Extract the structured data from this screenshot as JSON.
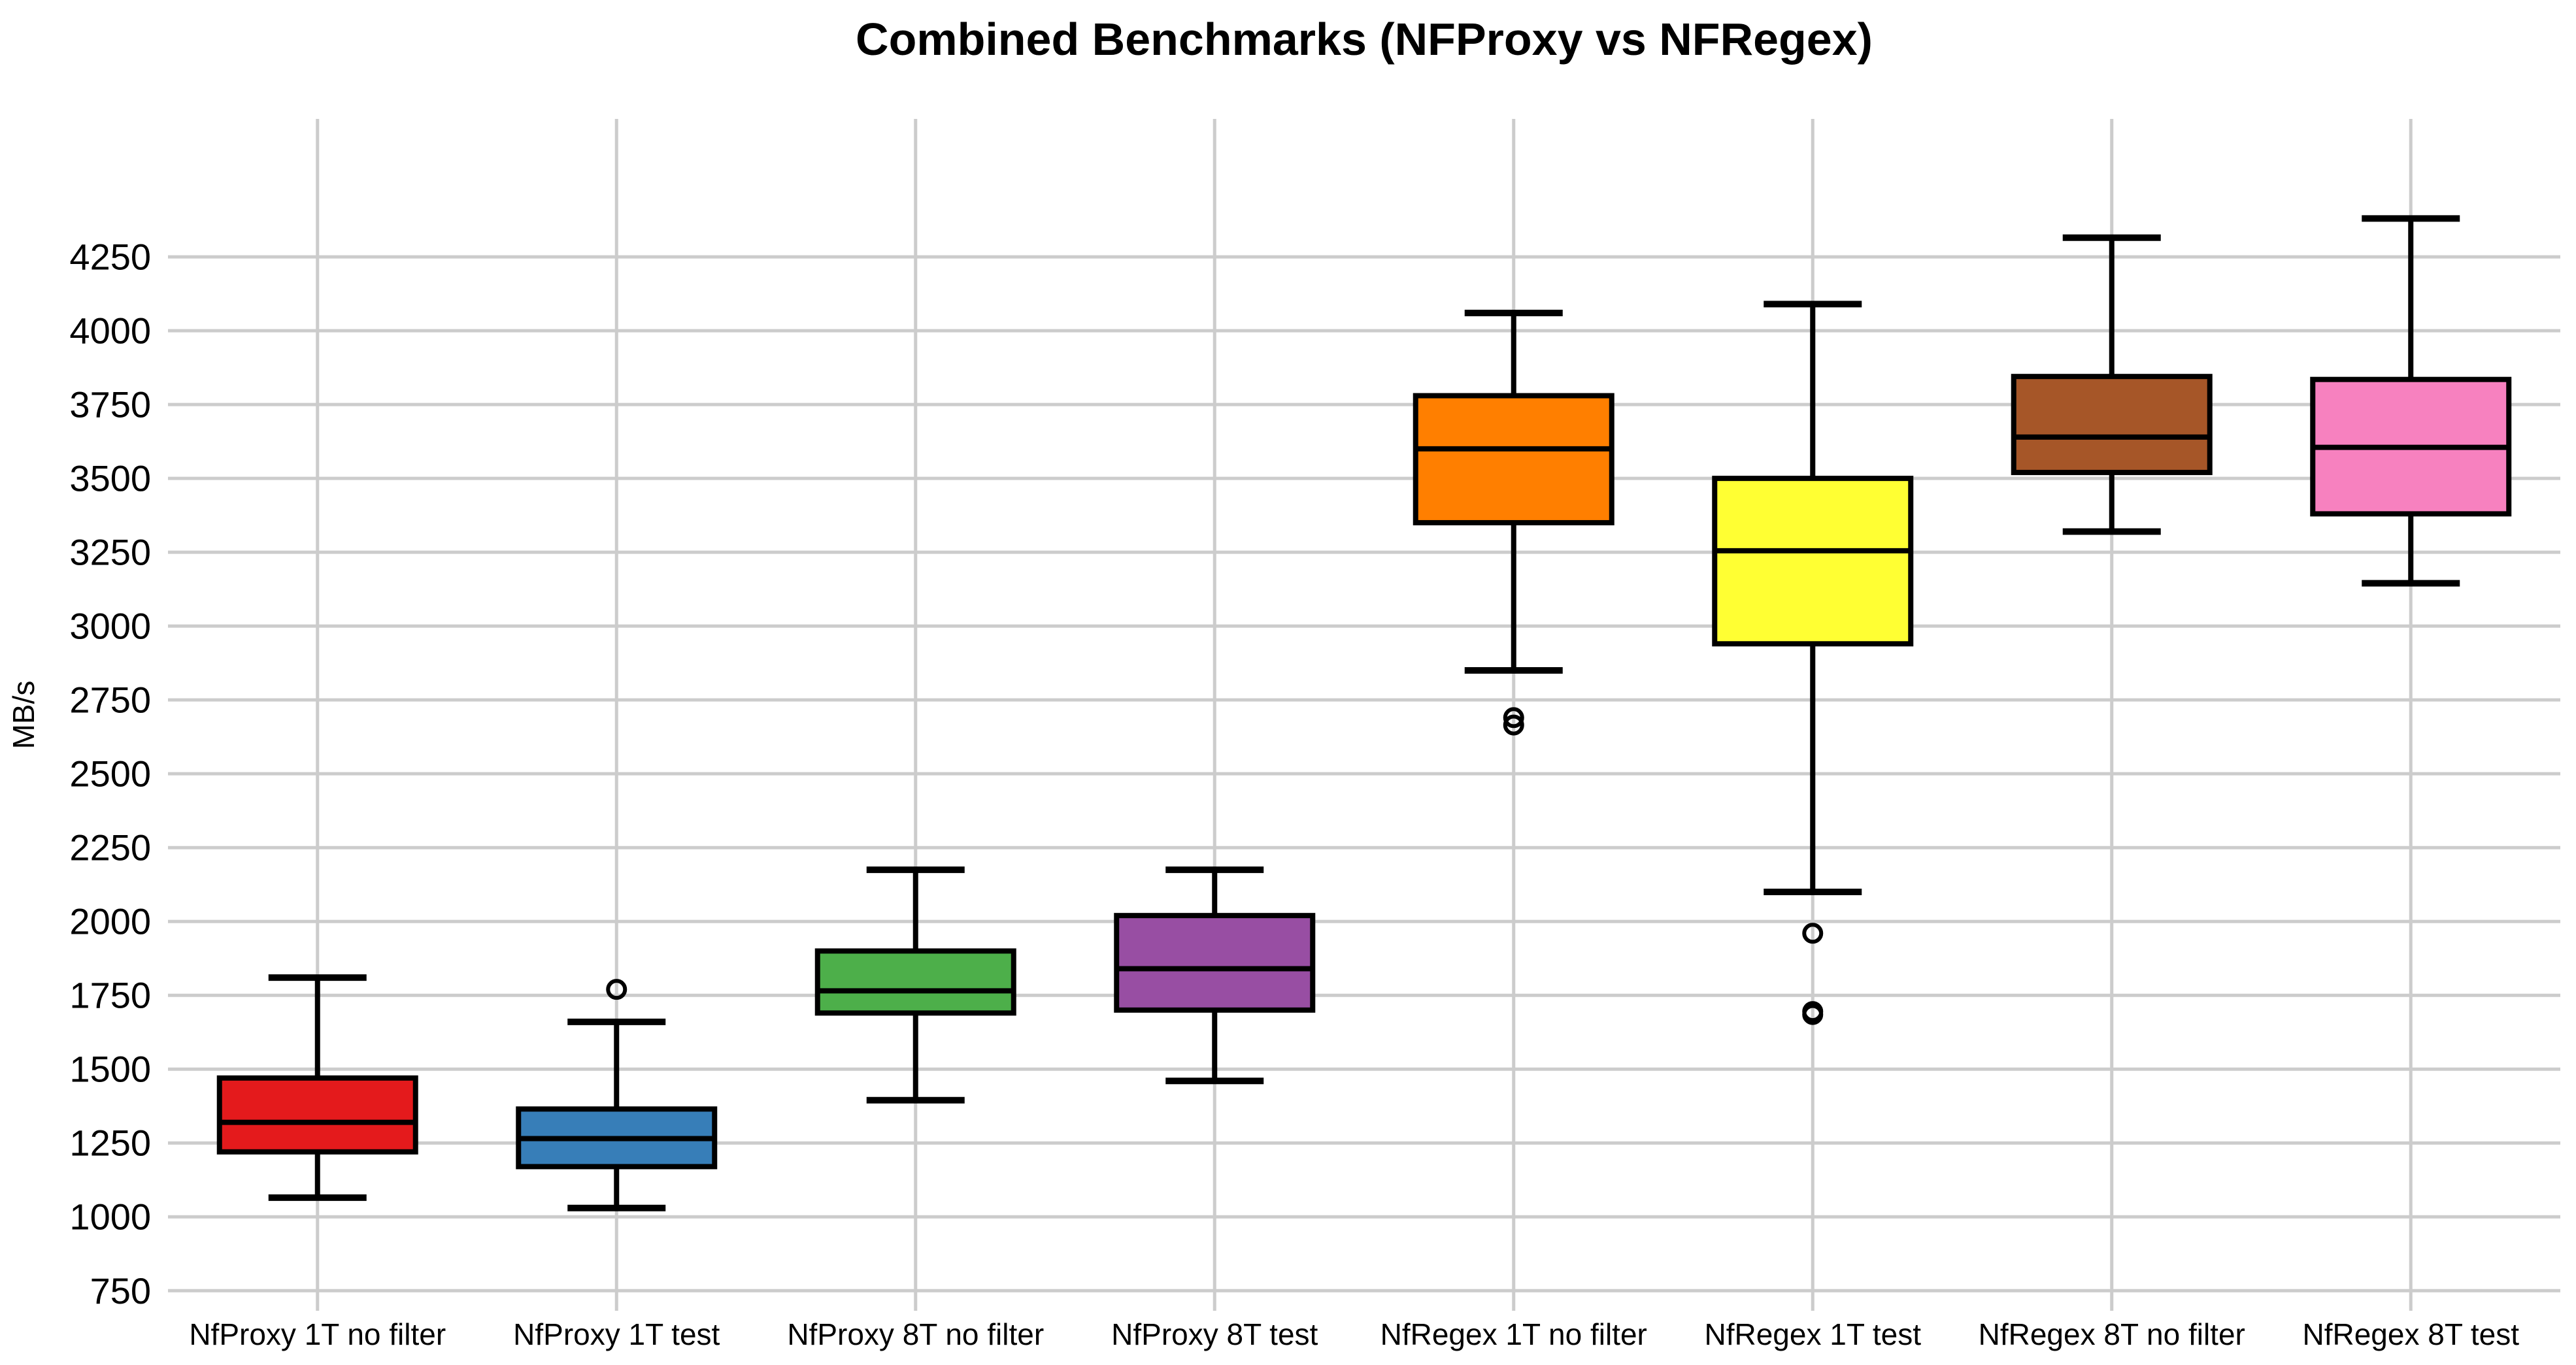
{
  "chart_data": {
    "type": "box",
    "title": "Combined Benchmarks (NFProxy vs NFRegex)",
    "ylabel": "MB/s",
    "xlabel": "",
    "ylim": [
      682,
      4717
    ],
    "yticks": [
      750,
      1000,
      1250,
      1500,
      1750,
      2000,
      2250,
      2500,
      2750,
      3000,
      3250,
      3500,
      3750,
      4000,
      4250
    ],
    "grid": {
      "horizontal": true,
      "vertical": true
    },
    "legend": "none",
    "categories": [
      "NfProxy 1T no filter",
      "NfProxy 1T test",
      "NfProxy 8T no filter",
      "NfProxy 8T test",
      "NfRegex 1T no filter",
      "NfRegex 1T test",
      "NfRegex 8T no filter",
      "NfRegex 8T test"
    ],
    "series": [
      {
        "name": "NfProxy 1T no filter",
        "color": "#e41a1c",
        "whislo": 1065,
        "q1": 1220,
        "med": 1320,
        "q3": 1470,
        "whishi": 1810,
        "outliers": []
      },
      {
        "name": "NfProxy 1T test",
        "color": "#377eb8",
        "whislo": 1030,
        "q1": 1170,
        "med": 1265,
        "q3": 1365,
        "whishi": 1660,
        "outliers": [
          1770
        ]
      },
      {
        "name": "NfProxy 8T no filter",
        "color": "#4daf4a",
        "whislo": 1395,
        "q1": 1690,
        "med": 1765,
        "q3": 1900,
        "whishi": 2175,
        "outliers": []
      },
      {
        "name": "NfProxy 8T test",
        "color": "#984ea3",
        "whislo": 1460,
        "q1": 1700,
        "med": 1840,
        "q3": 2020,
        "whishi": 2175,
        "outliers": []
      },
      {
        "name": "NfRegex 1T no filter",
        "color": "#ff7f00",
        "whislo": 2850,
        "q1": 3350,
        "med": 3600,
        "q3": 3780,
        "whishi": 4060,
        "outliers": [
          2690,
          2665
        ]
      },
      {
        "name": "NfRegex 1T test",
        "color": "#ffff33",
        "whislo": 2100,
        "q1": 2940,
        "med": 3255,
        "q3": 3500,
        "whishi": 4090,
        "outliers": [
          1960,
          1695,
          1685
        ]
      },
      {
        "name": "NfRegex 8T no filter",
        "color": "#a65628",
        "whislo": 3320,
        "q1": 3520,
        "med": 3640,
        "q3": 3845,
        "whishi": 4315,
        "outliers": []
      },
      {
        "name": "NfRegex 8T test",
        "color": "#f781bf",
        "whislo": 3145,
        "q1": 3380,
        "med": 3605,
        "q3": 3835,
        "whishi": 4380,
        "outliers": []
      }
    ],
    "style": {
      "grid_color": "#cccccc",
      "box_edge_color": "#000000",
      "background": "#ffffff"
    }
  }
}
